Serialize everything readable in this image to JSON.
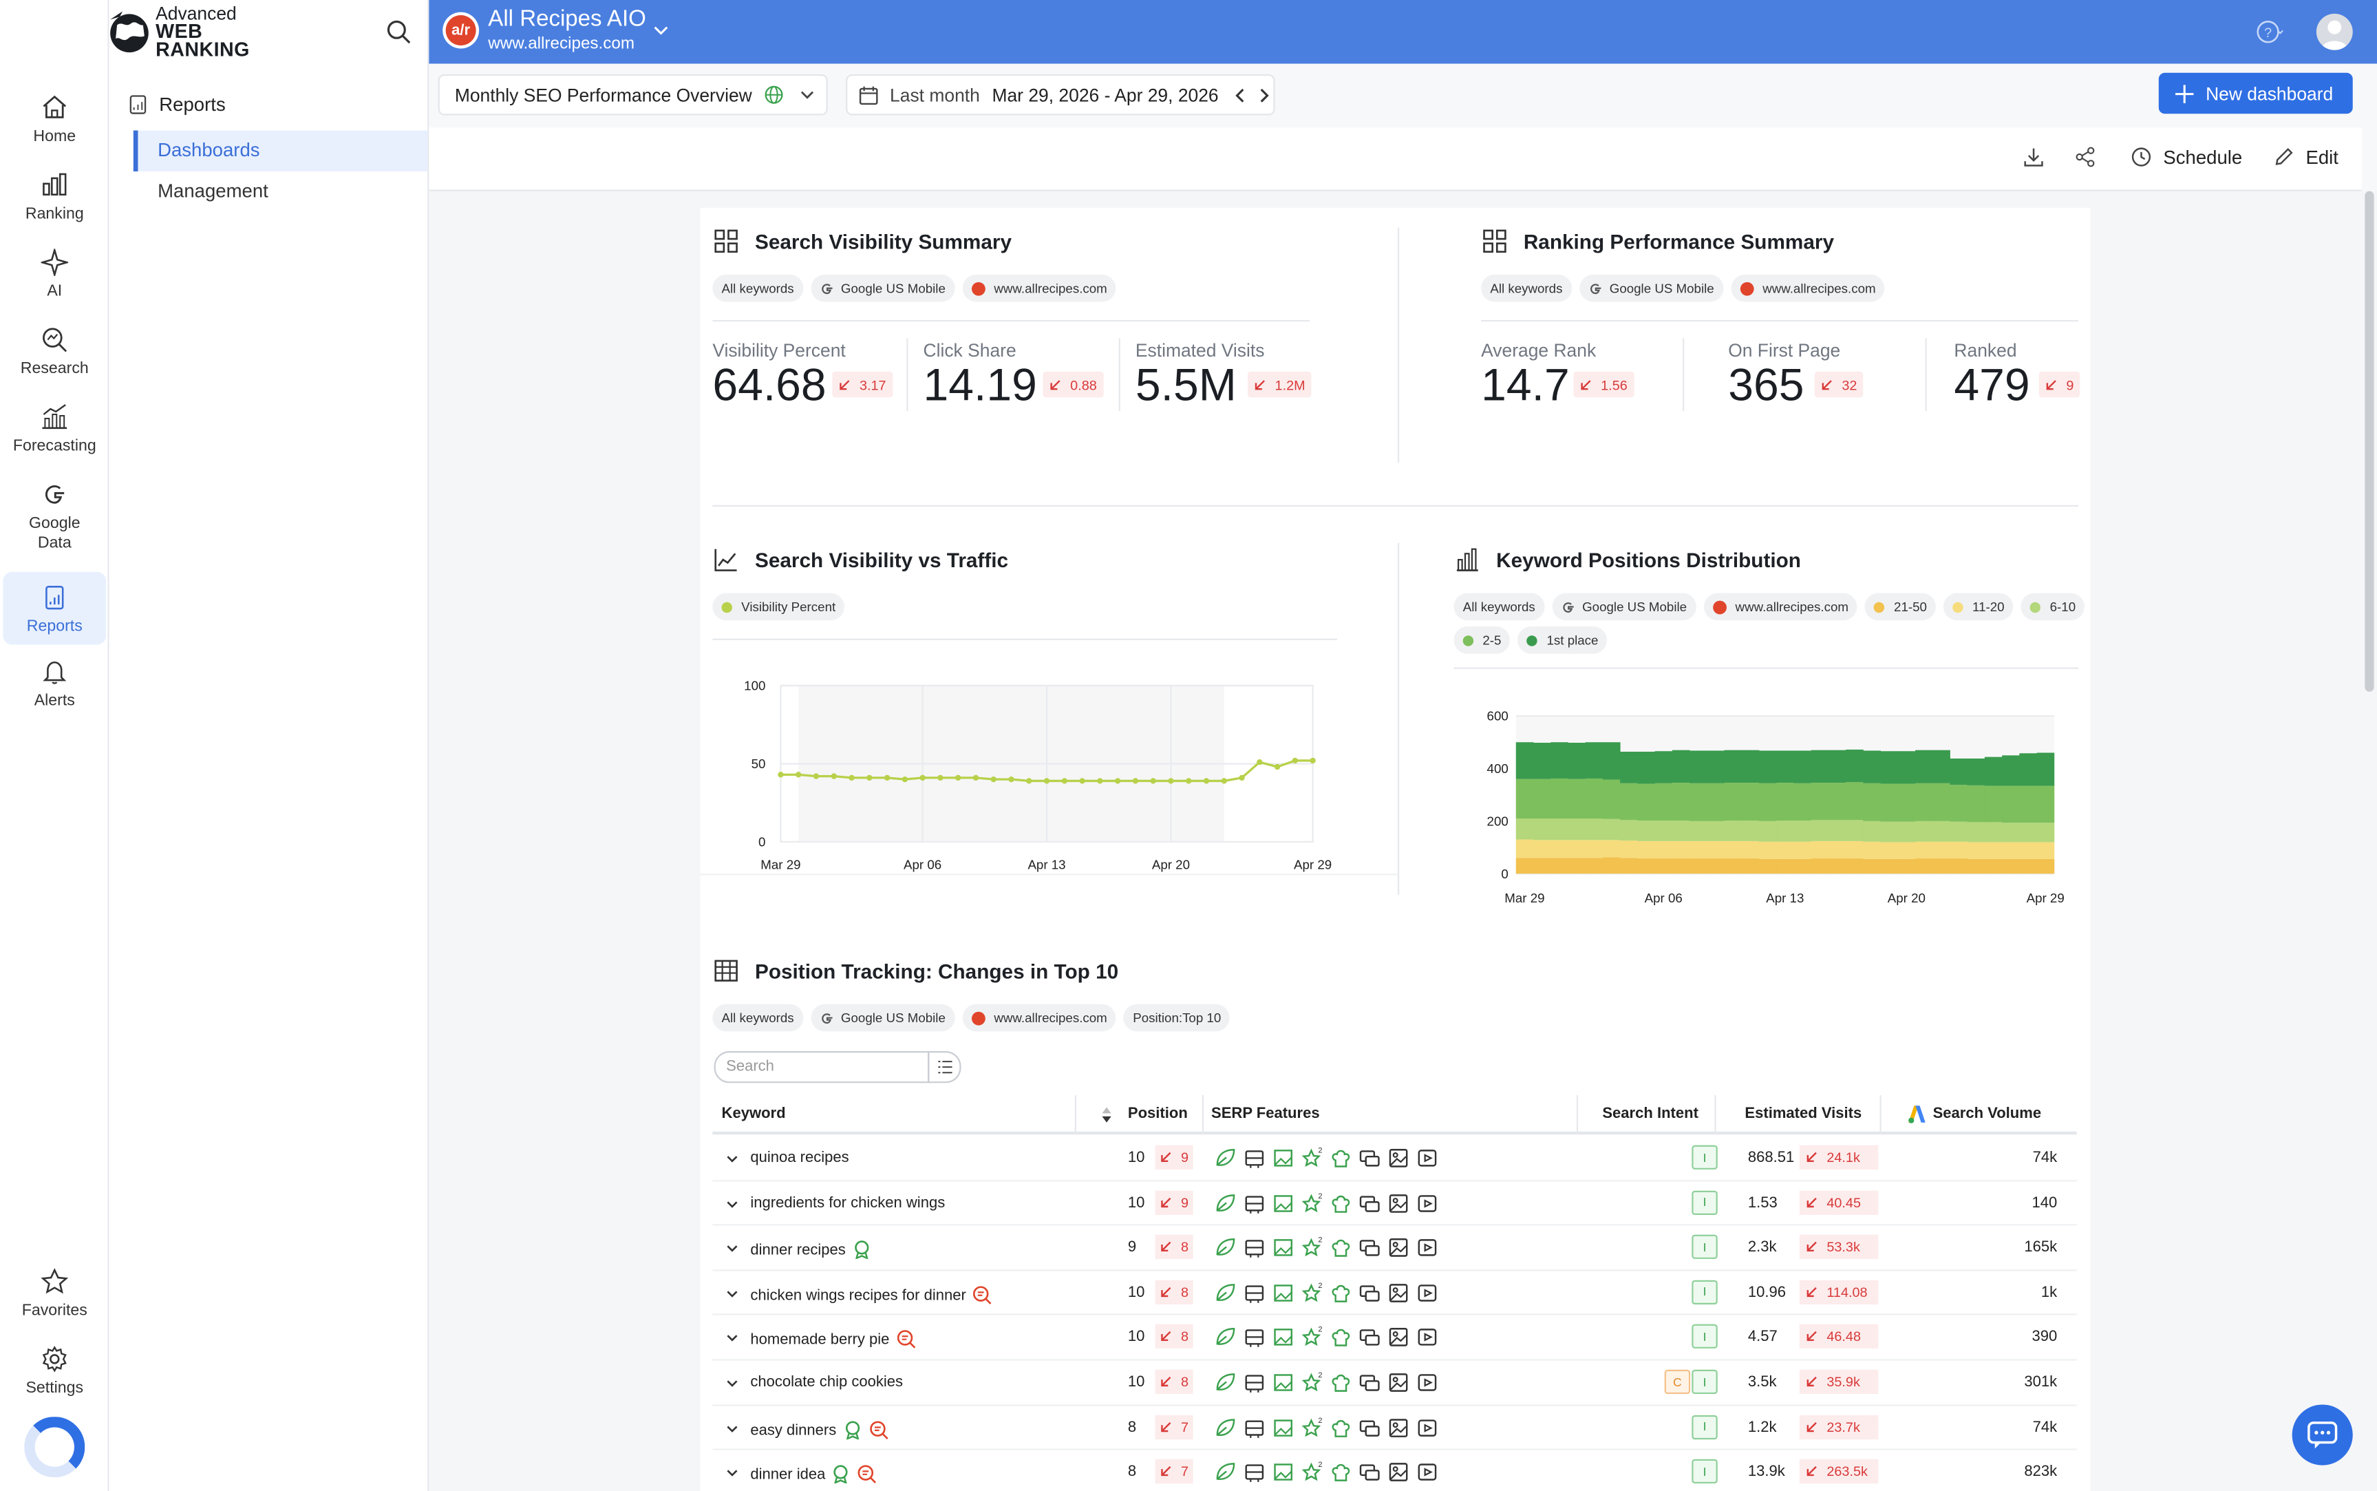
{
  "brand": {
    "line1": "Advanced",
    "line2": "WEB RANKING"
  },
  "nav": [
    {
      "label": "Home",
      "icon": "home-icon"
    },
    {
      "label": "Ranking",
      "icon": "ranking-icon"
    },
    {
      "label": "AI",
      "icon": "ai-icon"
    },
    {
      "label": "Research",
      "icon": "research-icon"
    },
    {
      "label": "Forecasting",
      "icon": "forecasting-icon"
    },
    {
      "label": "Google Data",
      "icon": "google-icon"
    },
    {
      "label": "Reports",
      "icon": "reports-icon",
      "active": true
    },
    {
      "label": "Alerts",
      "icon": "bell-icon"
    },
    {
      "label": "Favorites",
      "icon": "star-icon"
    },
    {
      "label": "Settings",
      "icon": "gear-icon"
    }
  ],
  "subnav": {
    "heading": "Reports",
    "items": [
      "Dashboards",
      "Management"
    ]
  },
  "project": {
    "icon_text": "a/r",
    "title": "All Recipes AIO",
    "url": "www.allrecipes.com"
  },
  "toolbar": {
    "dashboard_name": "Monthly SEO Performance Overview",
    "period_label": "Last month",
    "date_range": "Mar 29, 2026 - Apr 29, 2026",
    "new_dashboard": "New dashboard",
    "schedule": "Schedule",
    "edit": "Edit"
  },
  "visibility_summary": {
    "title": "Search Visibility Summary",
    "chips": [
      "All keywords",
      "Google US Mobile",
      "www.allrecipes.com"
    ],
    "metrics": [
      {
        "label": "Visibility Percent",
        "value": "64.68",
        "delta": "3.17"
      },
      {
        "label": "Click Share",
        "value": "14.19",
        "delta": "0.88"
      },
      {
        "label": "Estimated Visits",
        "value": "5.5M",
        "delta": "1.2M"
      }
    ]
  },
  "ranking_summary": {
    "title": "Ranking Performance Summary",
    "chips": [
      "All keywords",
      "Google US Mobile",
      "www.allrecipes.com"
    ],
    "metrics": [
      {
        "label": "Average Rank",
        "value": "14.7",
        "delta": "1.56"
      },
      {
        "label": "On First Page",
        "value": "365",
        "delta": "32"
      },
      {
        "label": "Ranked",
        "value": "479",
        "delta": "9"
      }
    ]
  },
  "line_widget": {
    "title": "Search Visibility vs Traffic",
    "legend": "Visibility Percent"
  },
  "bar_widget": {
    "title": "Keyword Positions Distribution",
    "chips": [
      "All keywords",
      "Google US Mobile",
      "www.allrecipes.com"
    ],
    "legend": [
      {
        "label": "21-50",
        "color": "#f2c14e"
      },
      {
        "label": "11-20",
        "color": "#f6dc7c"
      },
      {
        "label": "6-10",
        "color": "#b3d77a"
      },
      {
        "label": "2-5",
        "color": "#7dbf5c"
      },
      {
        "label": "1st place",
        "color": "#3a9b4e"
      }
    ]
  },
  "chart_data": [
    {
      "type": "line",
      "title": "Search Visibility vs Traffic",
      "series": [
        {
          "name": "Visibility Percent",
          "color": "#b7d14a",
          "values": [
            43,
            43,
            42,
            42,
            41,
            41,
            41,
            40,
            41,
            41,
            41,
            41,
            40,
            40,
            39,
            39,
            39,
            39,
            39,
            39,
            39,
            39,
            39,
            39,
            39,
            39,
            41,
            51,
            48,
            52,
            52
          ]
        }
      ],
      "xticks": [
        "Mar 29",
        "Apr 06",
        "Apr 13",
        "Apr 20",
        "Apr 29"
      ],
      "ylim": [
        0,
        100
      ],
      "yticks": [
        0,
        50,
        100
      ],
      "grid": true
    },
    {
      "type": "bar",
      "stacked": true,
      "title": "Keyword Positions Distribution",
      "xticks": [
        "Mar 29",
        "Apr 06",
        "Apr 13",
        "Apr 20",
        "Apr 29"
      ],
      "ylim": [
        0,
        600
      ],
      "yticks": [
        0,
        200,
        400,
        600
      ],
      "series": [
        {
          "name": "21-50",
          "color": "#f2c14e",
          "values": [
            60,
            60,
            60,
            60,
            60,
            62,
            60,
            58,
            58,
            58,
            58,
            58,
            58,
            58,
            56,
            56,
            56,
            58,
            58,
            58,
            56,
            56,
            56,
            58,
            58,
            58,
            56,
            56,
            56,
            56,
            56
          ]
        },
        {
          "name": "11-20",
          "color": "#f6dc7c",
          "values": [
            70,
            68,
            68,
            68,
            68,
            66,
            66,
            66,
            66,
            66,
            66,
            66,
            66,
            66,
            66,
            66,
            66,
            66,
            66,
            66,
            66,
            64,
            64,
            64,
            64,
            64,
            64,
            64,
            64,
            64,
            64
          ]
        },
        {
          "name": "6-10",
          "color": "#b3d77a",
          "values": [
            80,
            82,
            82,
            82,
            82,
            80,
            78,
            78,
            78,
            78,
            76,
            76,
            78,
            78,
            78,
            80,
            80,
            80,
            80,
            80,
            78,
            78,
            78,
            78,
            78,
            76,
            76,
            76,
            74,
            74,
            74
          ]
        },
        {
          "name": "2-5",
          "color": "#7dbf5c",
          "values": [
            150,
            150,
            152,
            150,
            152,
            150,
            140,
            140,
            142,
            144,
            144,
            144,
            144,
            144,
            144,
            144,
            142,
            142,
            142,
            144,
            144,
            144,
            144,
            144,
            144,
            140,
            140,
            138,
            140,
            140,
            140
          ]
        },
        {
          "name": "1st place",
          "color": "#3a9b4e",
          "values": [
            140,
            138,
            138,
            138,
            138,
            142,
            120,
            122,
            122,
            124,
            124,
            124,
            124,
            124,
            124,
            122,
            124,
            124,
            124,
            124,
            124,
            124,
            124,
            126,
            126,
            100,
            102,
            110,
            116,
            124,
            126
          ]
        }
      ]
    }
  ],
  "table_widget": {
    "title": "Position Tracking: Changes in Top 10",
    "chips": [
      "All keywords",
      "Google US Mobile",
      "www.allrecipes.com",
      "Position:Top 10"
    ],
    "search_placeholder": "Search",
    "columns": [
      "Keyword",
      "Position",
      "SERP Features",
      "Search Intent",
      "Estimated Visits",
      "Search Volume"
    ],
    "rows": [
      {
        "keyword": "quinoa recipes",
        "position": "10",
        "pos_delta": "9",
        "visits": "868.51",
        "visits_delta": "24.1k",
        "volume": "74k",
        "intent": [
          "I"
        ],
        "icons": []
      },
      {
        "keyword": "ingredients for chicken wings",
        "position": "10",
        "pos_delta": "9",
        "visits": "1.53",
        "visits_delta": "40.45",
        "volume": "140",
        "intent": [
          "I"
        ],
        "icons": []
      },
      {
        "keyword": "dinner recipes",
        "position": "9",
        "pos_delta": "8",
        "visits": "2.3k",
        "visits_delta": "53.3k",
        "volume": "165k",
        "intent": [
          "I"
        ],
        "icons": [
          "award-icon"
        ]
      },
      {
        "keyword": "chicken wings recipes for dinner",
        "position": "10",
        "pos_delta": "8",
        "visits": "10.96",
        "visits_delta": "114.08",
        "volume": "1k",
        "intent": [
          "I"
        ],
        "icons": [
          "ai-search-icon"
        ]
      },
      {
        "keyword": "homemade berry pie",
        "position": "10",
        "pos_delta": "8",
        "visits": "4.57",
        "visits_delta": "46.48",
        "volume": "390",
        "intent": [
          "I"
        ],
        "icons": [
          "ai-search-icon"
        ]
      },
      {
        "keyword": "chocolate chip cookies",
        "position": "10",
        "pos_delta": "8",
        "visits": "3.5k",
        "visits_delta": "35.9k",
        "volume": "301k",
        "intent": [
          "C",
          "I"
        ],
        "icons": []
      },
      {
        "keyword": "easy dinners",
        "position": "8",
        "pos_delta": "7",
        "visits": "1.2k",
        "visits_delta": "23.7k",
        "volume": "74k",
        "intent": [
          "I"
        ],
        "icons": [
          "award-icon",
          "ai-search-icon"
        ]
      },
      {
        "keyword": "dinner idea",
        "position": "8",
        "pos_delta": "7",
        "visits": "13.9k",
        "visits_delta": "263.5k",
        "volume": "823k",
        "intent": [
          "I"
        ],
        "icons": [
          "award-icon",
          "ai-search-icon"
        ]
      }
    ]
  }
}
